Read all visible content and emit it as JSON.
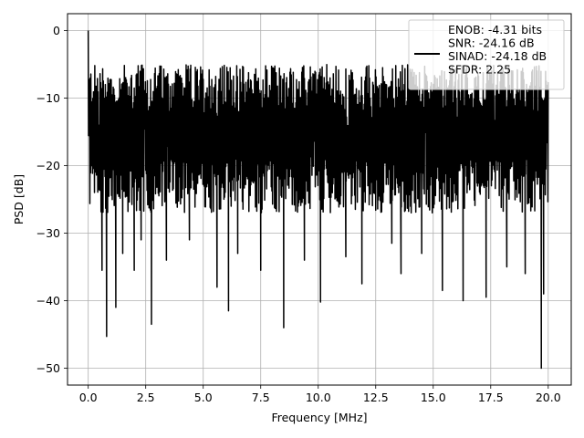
{
  "chart_data": {
    "type": "line",
    "title": "",
    "xlabel": "Frequency [MHz]",
    "ylabel": "PSD [dB]",
    "xlim": [
      -0.9,
      21.0
    ],
    "ylim": [
      -52.5,
      2.5
    ],
    "xticks": [
      0.0,
      2.5,
      5.0,
      7.5,
      10.0,
      12.5,
      15.0,
      17.5,
      20.0
    ],
    "xtick_labels": [
      "0.0",
      "2.5",
      "5.0",
      "7.5",
      "10.0",
      "12.5",
      "15.0",
      "17.5",
      "20.0"
    ],
    "yticks": [
      0,
      -10,
      -20,
      -30,
      -40,
      -50
    ],
    "ytick_labels": [
      "0",
      "−10",
      "−20",
      "−30",
      "−40",
      "−50"
    ],
    "grid": true,
    "legend_position": "top-right",
    "legend": {
      "lines": [
        "ENOB: -4.31 bits",
        "SNR: -24.16 dB",
        "SINAD: -24.18 dB",
        "SFDR: 2.25"
      ]
    },
    "series": [
      {
        "color": "#000000",
        "x_range": [
          0.0,
          20.0
        ],
        "peak": {
          "x": 0.0,
          "y": 0.0
        },
        "upper_envelope_range": [
          -12,
          -5
        ],
        "lower_envelope_range": [
          -27,
          -19
        ],
        "dip_points": [
          {
            "x": 0.6,
            "y": -35.5
          },
          {
            "x": 0.8,
            "y": -45.3
          },
          {
            "x": 1.2,
            "y": -41.0
          },
          {
            "x": 1.5,
            "y": -33.0
          },
          {
            "x": 2.0,
            "y": -35.5
          },
          {
            "x": 2.3,
            "y": -31.0
          },
          {
            "x": 2.75,
            "y": -43.5
          },
          {
            "x": 3.4,
            "y": -34.0
          },
          {
            "x": 4.4,
            "y": -31.0
          },
          {
            "x": 5.6,
            "y": -38.0
          },
          {
            "x": 6.1,
            "y": -41.5
          },
          {
            "x": 6.5,
            "y": -33.0
          },
          {
            "x": 7.5,
            "y": -35.5
          },
          {
            "x": 8.5,
            "y": -44.0
          },
          {
            "x": 9.4,
            "y": -34.0
          },
          {
            "x": 10.1,
            "y": -40.2
          },
          {
            "x": 11.2,
            "y": -33.5
          },
          {
            "x": 11.9,
            "y": -37.5
          },
          {
            "x": 13.2,
            "y": -31.5
          },
          {
            "x": 13.6,
            "y": -36.0
          },
          {
            "x": 14.5,
            "y": -33.0
          },
          {
            "x": 15.4,
            "y": -38.5
          },
          {
            "x": 16.3,
            "y": -40.0
          },
          {
            "x": 17.3,
            "y": -39.5
          },
          {
            "x": 18.2,
            "y": -35.0
          },
          {
            "x": 19.0,
            "y": -36.0
          },
          {
            "x": 19.7,
            "y": -50.0
          },
          {
            "x": 19.8,
            "y": -39.0
          }
        ]
      }
    ]
  }
}
